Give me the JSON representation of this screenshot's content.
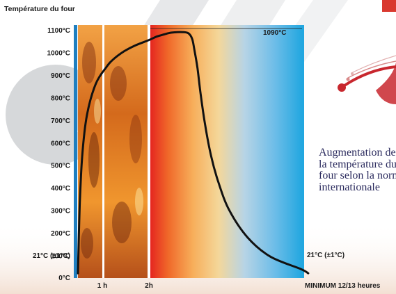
{
  "chart_data": {
    "type": "line",
    "title": "Température du four",
    "ylabel": "Température du four",
    "xlabel": "",
    "ylim": [
      0,
      1100
    ],
    "y_ticks": [
      "0°C",
      "21°C (±1°C)",
      "100°C",
      "200°C",
      "300°C",
      "400°C",
      "500°C",
      "600°C",
      "700°C",
      "800°C",
      "900°C",
      "1000°C",
      "1100°C"
    ],
    "x_ticks": [
      "1 h",
      "2h"
    ],
    "x_end_label": "MINIMUM 12/13 heures",
    "annotations": [
      "1090°C",
      "21°C (±1°C)"
    ],
    "series": [
      {
        "values_hours": [
          0,
          0.05,
          0.12,
          0.25,
          0.5,
          0.8,
          1,
          1.3,
          1.6,
          2,
          2.5,
          3,
          3.5,
          4.2,
          4.6,
          4.85,
          5,
          5.2,
          5.4,
          5.7,
          6.1,
          6.6,
          7.3,
          8.5,
          10,
          12,
          12.5
        ],
        "values_celsius": [
          21,
          320,
          540,
          720,
          860,
          935,
          970,
          1005,
          1030,
          1055,
          1070,
          1080,
          1088,
          1090,
          1085,
          1060,
          1010,
          930,
          820,
          680,
          540,
          420,
          300,
          180,
          95,
          40,
          21
        ]
      }
    ],
    "grid": false,
    "legend": "none"
  },
  "caption": {
    "lines": [
      "Augmentation de",
      "la température du",
      "four selon la norme",
      "internationale"
    ]
  },
  "colors": {
    "axis": "#1f7fc0",
    "curve": "#111111",
    "caption": "#2b2b5e",
    "accent": "#c8272e"
  }
}
